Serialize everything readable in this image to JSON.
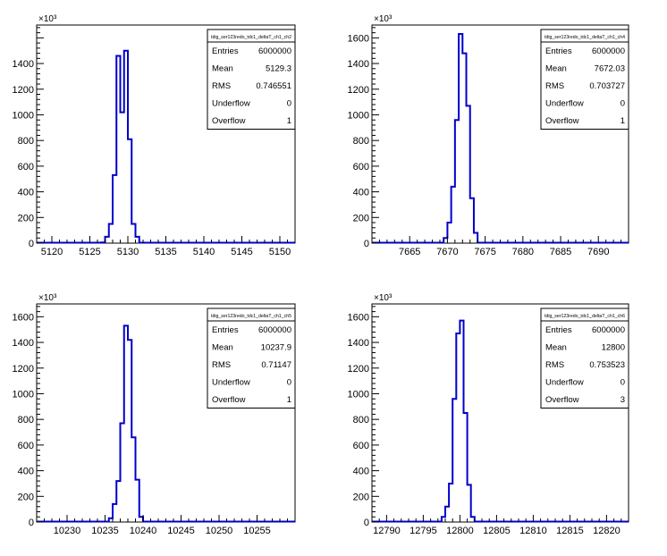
{
  "exponent_label": "×10³",
  "hist_color": "#0000cc",
  "chart_data": [
    {
      "type": "histogram",
      "stats_title": "tdig_ser123redo_tdc1_deltaT_ch1_ch2",
      "stats": [
        {
          "label": "Entries",
          "value": "6000000"
        },
        {
          "label": "Mean",
          "value": "5129.3"
        },
        {
          "label": "RMS",
          "value": "0.746551"
        },
        {
          "label": "Underflow",
          "value": "0"
        },
        {
          "label": "Overflow",
          "value": "1"
        }
      ],
      "xlim": [
        5118,
        5152
      ],
      "ylim": [
        0,
        1700
      ],
      "xticks": [
        "5120",
        "5125",
        "5130",
        "5135",
        "5140",
        "5145",
        "5150"
      ],
      "yticks": [
        "0",
        "200",
        "400",
        "600",
        "800",
        "1000",
        "1200",
        "1400"
      ],
      "bin_width": 0.5,
      "bins_x": [
        5126.5,
        5127,
        5127.5,
        5128,
        5128.5,
        5129,
        5129.5,
        5130,
        5130.5,
        5131
      ],
      "bins_y": [
        5,
        50,
        150,
        530,
        1460,
        1020,
        1500,
        810,
        150,
        50
      ]
    },
    {
      "type": "histogram",
      "stats_title": "tdig_ser123redo_tdc1_deltaT_ch1_ch4",
      "stats": [
        {
          "label": "Entries",
          "value": "6000000"
        },
        {
          "label": "Mean",
          "value": "7672.03"
        },
        {
          "label": "RMS",
          "value": "0.703727"
        },
        {
          "label": "Underflow",
          "value": "0"
        },
        {
          "label": "Overflow",
          "value": "1"
        }
      ],
      "xlim": [
        7660,
        7694
      ],
      "ylim": [
        0,
        1700
      ],
      "xticks": [
        "7665",
        "7670",
        "7675",
        "7680",
        "7685",
        "7690"
      ],
      "yticks": [
        "0",
        "200",
        "400",
        "600",
        "800",
        "1000",
        "1200",
        "1400",
        "1600"
      ],
      "bin_width": 0.5,
      "bins_x": [
        7669.5,
        7670,
        7670.5,
        7671,
        7671.5,
        7672,
        7672.5,
        7673,
        7673.5
      ],
      "bins_y": [
        40,
        160,
        440,
        960,
        1630,
        1480,
        1070,
        350,
        80
      ]
    },
    {
      "type": "histogram",
      "stats_title": "tdig_ser123redo_tdc1_deltaT_ch1_ch5",
      "stats": [
        {
          "label": "Entries",
          "value": "6000000"
        },
        {
          "label": "Mean",
          "value": "10237.9"
        },
        {
          "label": "RMS",
          "value": "0.71147"
        },
        {
          "label": "Underflow",
          "value": "0"
        },
        {
          "label": "Overflow",
          "value": "1"
        }
      ],
      "xlim": [
        10226,
        10260
      ],
      "ylim": [
        0,
        1700
      ],
      "xticks": [
        "10230",
        "10235",
        "10240",
        "10245",
        "10250",
        "10255"
      ],
      "yticks": [
        "0",
        "200",
        "400",
        "600",
        "800",
        "1000",
        "1200",
        "1400",
        "1600"
      ],
      "bin_width": 0.5,
      "bins_x": [
        10235.5,
        10236,
        10236.5,
        10237,
        10237.5,
        10238,
        10238.5,
        10239,
        10239.5
      ],
      "bins_y": [
        30,
        140,
        320,
        770,
        1530,
        1420,
        660,
        330,
        40
      ]
    },
    {
      "type": "histogram",
      "stats_title": "tdig_ser123redo_tdc1_deltaT_ch1_ch6",
      "stats": [
        {
          "label": "Entries",
          "value": "6000000"
        },
        {
          "label": "Mean",
          "value": "12800"
        },
        {
          "label": "RMS",
          "value": "0.753523"
        },
        {
          "label": "Underflow",
          "value": "0"
        },
        {
          "label": "Overflow",
          "value": "3"
        }
      ],
      "xlim": [
        12788,
        12823
      ],
      "ylim": [
        0,
        1700
      ],
      "xticks": [
        "12790",
        "12795",
        "12800",
        "12805",
        "12810",
        "12815",
        "12820"
      ],
      "yticks": [
        "0",
        "200",
        "400",
        "600",
        "800",
        "1000",
        "1200",
        "1400",
        "1600"
      ],
      "bin_width": 0.5,
      "bins_x": [
        12797.5,
        12798,
        12798.5,
        12799,
        12799.5,
        12800,
        12800.5,
        12801,
        12801.5
      ],
      "bins_y": [
        40,
        120,
        300,
        960,
        1470,
        1570,
        850,
        290,
        40
      ]
    }
  ]
}
